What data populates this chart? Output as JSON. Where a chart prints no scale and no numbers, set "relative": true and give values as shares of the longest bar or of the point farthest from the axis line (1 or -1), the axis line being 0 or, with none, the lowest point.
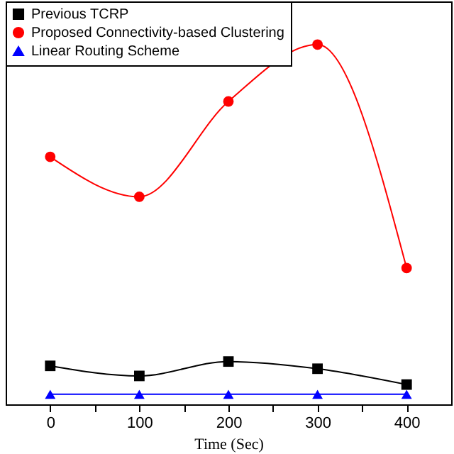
{
  "chart_data": {
    "type": "line",
    "relative": true,
    "xlabel": "Time (Sec)",
    "x": [
      0,
      100,
      200,
      300,
      400
    ],
    "xlim": [
      -50,
      450
    ],
    "xticks": [
      0,
      {
        "value": 50,
        "label": null
      },
      100,
      {
        "value": 150,
        "label": null
      },
      200,
      {
        "value": 250,
        "label": null
      },
      300,
      {
        "value": 350,
        "label": null
      },
      400
    ],
    "legend": "top left",
    "series": [
      {
        "name": "Previous TCRP",
        "color": "#000000",
        "marker": "square",
        "values": [
          0.107,
          0.079,
          0.119,
          0.099,
          0.055
        ]
      },
      {
        "name": "Proposed Connectivity-based Clustering",
        "color": "#ff0000",
        "marker": "circle",
        "values": [
          0.688,
          0.577,
          0.842,
          1,
          0.379
        ]
      },
      {
        "name": "Linear Routing Scheme",
        "color": "#0000ff",
        "marker": "triangle",
        "values": [
          0.028,
          0.028,
          0.028,
          0.028,
          0.028
        ]
      }
    ]
  }
}
